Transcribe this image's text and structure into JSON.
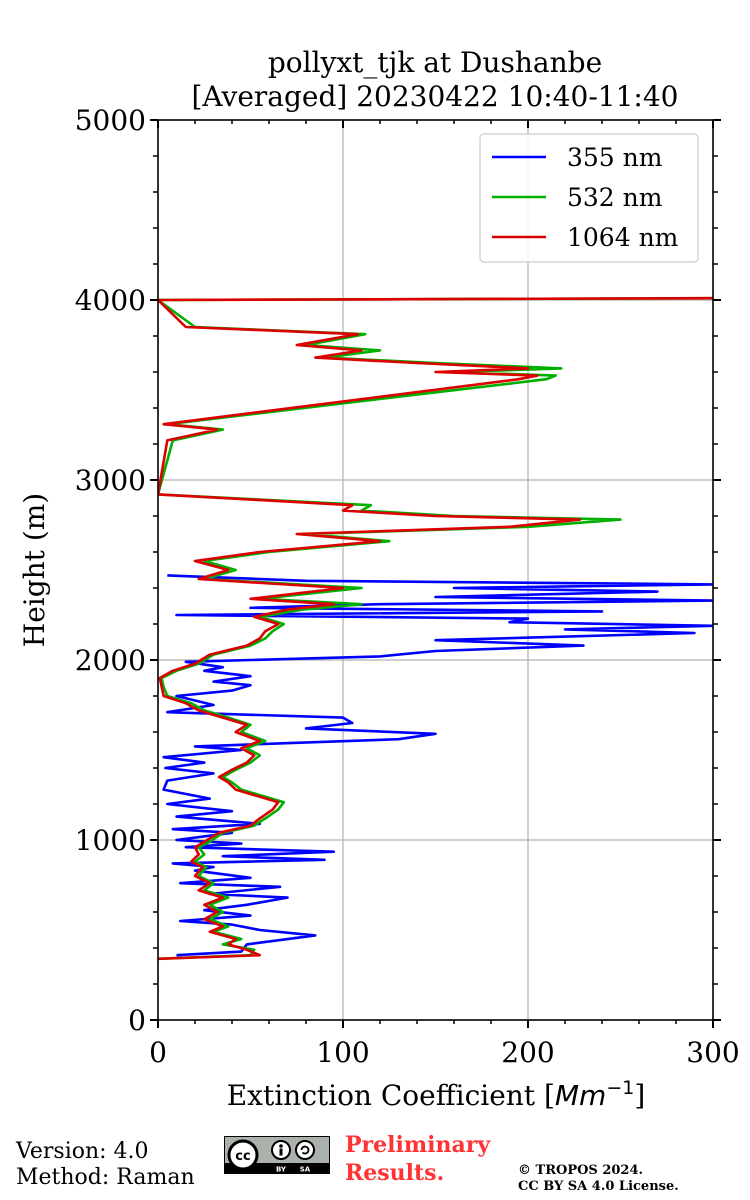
{
  "chart_data": {
    "type": "line",
    "title_line1": "pollyxt_tjk at Dushanbe",
    "title_line2": "[Averaged] 20230422 10:40-11:40",
    "xlabel": "Extinction Coefficient [Mm^-1]",
    "xlabel_text": "Extinction Coefficient [",
    "xlabel_unit": "Mm",
    "xlabel_exp": "−1",
    "xlabel_close": "]",
    "ylabel": "Height (m)",
    "xlim": [
      0,
      300
    ],
    "ylim": [
      0,
      5000
    ],
    "xticks": [
      0,
      100,
      200,
      300
    ],
    "yticks": [
      0,
      1000,
      2000,
      3000,
      4000,
      5000
    ],
    "xtick_labels": [
      "0",
      "100",
      "200",
      "300"
    ],
    "ytick_labels": [
      "0",
      "1000",
      "2000",
      "3000",
      "4000",
      "5000"
    ],
    "grid": true,
    "legend_position": "top-right",
    "series": [
      {
        "name": "355 nm",
        "color": "#0000ff",
        "points": [
          [
            10,
            360
          ],
          [
            45,
            380
          ],
          [
            48,
            420
          ],
          [
            85,
            470
          ],
          [
            55,
            500
          ],
          [
            40,
            530
          ],
          [
            12,
            550
          ],
          [
            50,
            580
          ],
          [
            25,
            610
          ],
          [
            48,
            640
          ],
          [
            70,
            680
          ],
          [
            28,
            700
          ],
          [
            66,
            740
          ],
          [
            12,
            760
          ],
          [
            50,
            790
          ],
          [
            20,
            830
          ],
          [
            30,
            850
          ],
          [
            8,
            870
          ],
          [
            90,
            890
          ],
          [
            35,
            910
          ],
          [
            95,
            935
          ],
          [
            15,
            960
          ],
          [
            45,
            980
          ],
          [
            10,
            1000
          ],
          [
            40,
            1040
          ],
          [
            8,
            1060
          ],
          [
            55,
            1090
          ],
          [
            10,
            1130
          ],
          [
            40,
            1160
          ],
          [
            5,
            1200
          ],
          [
            28,
            1230
          ],
          [
            3,
            1280
          ],
          [
            5,
            1330
          ],
          [
            30,
            1370
          ],
          [
            4,
            1400
          ],
          [
            25,
            1430
          ],
          [
            3,
            1460
          ],
          [
            45,
            1500
          ],
          [
            20,
            1520
          ],
          [
            130,
            1560
          ],
          [
            150,
            1590
          ],
          [
            80,
            1620
          ],
          [
            105,
            1650
          ],
          [
            100,
            1680
          ],
          [
            5,
            1710
          ],
          [
            30,
            1750
          ],
          [
            10,
            1800
          ],
          [
            40,
            1830
          ],
          [
            50,
            1860
          ],
          [
            30,
            1880
          ],
          [
            50,
            1910
          ],
          [
            25,
            1940
          ],
          [
            35,
            1960
          ],
          [
            15,
            1990
          ],
          [
            120,
            2020
          ],
          [
            150,
            2050
          ],
          [
            230,
            2080
          ],
          [
            150,
            2110
          ],
          [
            290,
            2150
          ],
          [
            220,
            2170
          ],
          [
            300,
            2190
          ],
          [
            190,
            2210
          ],
          [
            200,
            2230
          ],
          [
            10,
            2250
          ],
          [
            240,
            2270
          ],
          [
            50,
            2290
          ],
          [
            120,
            2310
          ],
          [
            300,
            2330
          ],
          [
            150,
            2350
          ],
          [
            270,
            2380
          ],
          [
            160,
            2400
          ],
          [
            300,
            2420
          ],
          [
            80,
            2440
          ],
          [
            5,
            2470
          ]
        ]
      },
      {
        "name": "532 nm",
        "color": "#00b000",
        "points": [
          [
            0,
            340
          ],
          [
            50,
            360
          ],
          [
            52,
            390
          ],
          [
            35,
            420
          ],
          [
            45,
            450
          ],
          [
            30,
            490
          ],
          [
            38,
            520
          ],
          [
            28,
            560
          ],
          [
            35,
            600
          ],
          [
            28,
            640
          ],
          [
            38,
            680
          ],
          [
            25,
            720
          ],
          [
            30,
            760
          ],
          [
            22,
            800
          ],
          [
            26,
            850
          ],
          [
            20,
            880
          ],
          [
            25,
            920
          ],
          [
            22,
            960
          ],
          [
            28,
            990
          ],
          [
            35,
            1040
          ],
          [
            52,
            1080
          ],
          [
            58,
            1120
          ],
          [
            65,
            1170
          ],
          [
            68,
            1210
          ],
          [
            58,
            1240
          ],
          [
            45,
            1280
          ],
          [
            40,
            1320
          ],
          [
            35,
            1350
          ],
          [
            42,
            1390
          ],
          [
            50,
            1430
          ],
          [
            55,
            1470
          ],
          [
            48,
            1510
          ],
          [
            58,
            1550
          ],
          [
            45,
            1600
          ],
          [
            50,
            1640
          ],
          [
            38,
            1680
          ],
          [
            25,
            1720
          ],
          [
            18,
            1760
          ],
          [
            5,
            1800
          ],
          [
            3,
            1850
          ],
          [
            2,
            1900
          ],
          [
            10,
            1940
          ],
          [
            22,
            1980
          ],
          [
            30,
            2030
          ],
          [
            50,
            2080
          ],
          [
            58,
            2120
          ],
          [
            62,
            2160
          ],
          [
            68,
            2200
          ],
          [
            55,
            2240
          ],
          [
            78,
            2280
          ],
          [
            110,
            2310
          ],
          [
            55,
            2340
          ],
          [
            110,
            2400
          ],
          [
            25,
            2450
          ],
          [
            42,
            2500
          ],
          [
            25,
            2550
          ],
          [
            60,
            2600
          ],
          [
            125,
            2660
          ],
          [
            80,
            2700
          ],
          [
            200,
            2740
          ],
          [
            250,
            2780
          ],
          [
            160,
            2800
          ],
          [
            110,
            2830
          ],
          [
            115,
            2860
          ],
          [
            0,
            2920
          ],
          [
            8,
            3220
          ],
          [
            35,
            3280
          ],
          [
            5,
            3310
          ],
          [
            210,
            3560
          ],
          [
            215,
            3580
          ],
          [
            160,
            3600
          ],
          [
            218,
            3620
          ],
          [
            150,
            3650
          ],
          [
            90,
            3680
          ],
          [
            120,
            3720
          ],
          [
            80,
            3750
          ],
          [
            112,
            3810
          ],
          [
            20,
            3850
          ],
          [
            0,
            4000
          ],
          [
            300,
            4010
          ]
        ]
      },
      {
        "name": "1064 nm",
        "color": "#dd0000",
        "points": [
          [
            0,
            340
          ],
          [
            55,
            360
          ],
          [
            48,
            390
          ],
          [
            38,
            420
          ],
          [
            42,
            450
          ],
          [
            28,
            490
          ],
          [
            35,
            520
          ],
          [
            25,
            560
          ],
          [
            32,
            600
          ],
          [
            25,
            640
          ],
          [
            35,
            680
          ],
          [
            22,
            720
          ],
          [
            28,
            760
          ],
          [
            20,
            800
          ],
          [
            24,
            850
          ],
          [
            18,
            880
          ],
          [
            22,
            920
          ],
          [
            20,
            960
          ],
          [
            25,
            990
          ],
          [
            33,
            1040
          ],
          [
            50,
            1080
          ],
          [
            55,
            1120
          ],
          [
            62,
            1170
          ],
          [
            65,
            1210
          ],
          [
            55,
            1240
          ],
          [
            42,
            1280
          ],
          [
            38,
            1320
          ],
          [
            33,
            1350
          ],
          [
            40,
            1390
          ],
          [
            48,
            1430
          ],
          [
            52,
            1470
          ],
          [
            45,
            1510
          ],
          [
            55,
            1550
          ],
          [
            42,
            1600
          ],
          [
            48,
            1640
          ],
          [
            35,
            1680
          ],
          [
            22,
            1720
          ],
          [
            15,
            1760
          ],
          [
            3,
            1800
          ],
          [
            2,
            1850
          ],
          [
            1,
            1900
          ],
          [
            8,
            1940
          ],
          [
            20,
            1980
          ],
          [
            28,
            2030
          ],
          [
            48,
            2080
          ],
          [
            55,
            2120
          ],
          [
            58,
            2160
          ],
          [
            65,
            2200
          ],
          [
            52,
            2240
          ],
          [
            70,
            2280
          ],
          [
            95,
            2310
          ],
          [
            50,
            2340
          ],
          [
            100,
            2400
          ],
          [
            22,
            2450
          ],
          [
            38,
            2500
          ],
          [
            20,
            2550
          ],
          [
            55,
            2600
          ],
          [
            120,
            2660
          ],
          [
            75,
            2700
          ],
          [
            190,
            2740
          ],
          [
            228,
            2780
          ],
          [
            150,
            2800
          ],
          [
            100,
            2830
          ],
          [
            105,
            2860
          ],
          [
            0,
            2920
          ],
          [
            5,
            3220
          ],
          [
            32,
            3280
          ],
          [
            3,
            3310
          ],
          [
            195,
            3560
          ],
          [
            205,
            3580
          ],
          [
            150,
            3600
          ],
          [
            200,
            3620
          ],
          [
            140,
            3650
          ],
          [
            85,
            3680
          ],
          [
            110,
            3720
          ],
          [
            75,
            3750
          ],
          [
            108,
            3810
          ],
          [
            15,
            3850
          ],
          [
            0,
            4000
          ],
          [
            300,
            4010
          ]
        ]
      }
    ]
  },
  "footer": {
    "version": "Version: 4.0",
    "method": "Method: Raman",
    "preliminary_line1": "Preliminary",
    "preliminary_line2": "Results.",
    "copyright_line1": "© TROPOS 2024.",
    "copyright_line2": "CC BY SA 4.0 License."
  },
  "license_badge": {
    "cc": "cc",
    "by": "BY",
    "sa": "SA"
  }
}
